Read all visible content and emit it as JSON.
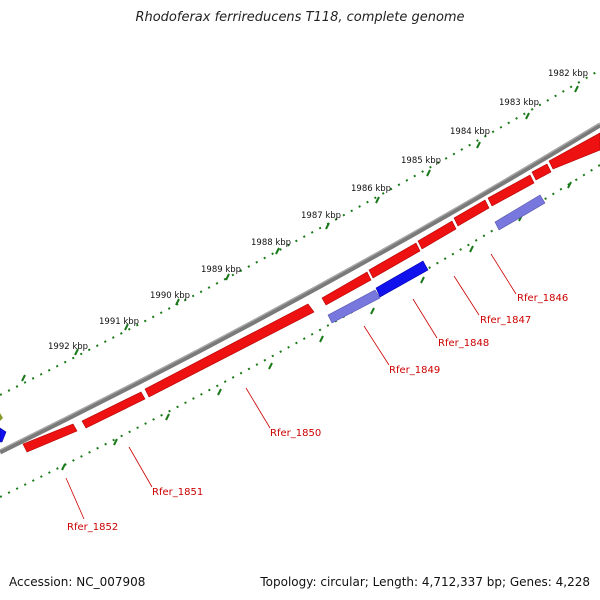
{
  "title": "Rhodoferax ferrireducens T118, complete genome",
  "footer": {
    "accession": "Accession: NC_007908",
    "summary": "Topology: circular; Length: 4,712,337 bp; Genes: 4,228"
  },
  "colors": {
    "backbone": "#7a7a7a",
    "ruler_ticks": "#1a7a1a",
    "forward_gene": "#ee1111",
    "reverse_gene": "#1111ee",
    "reverse_gene_light": "#7777dd",
    "label": "#cc0000"
  },
  "ruler": {
    "unit": "kbp",
    "labels": [
      "1982 kbp",
      "1983 kbp",
      "1984 kbp",
      "1985 kbp",
      "1986 kbp",
      "1987 kbp",
      "1988 kbp",
      "1989 kbp",
      "1990 kbp",
      "1991 kbp",
      "1992 kbp"
    ]
  },
  "genes": [
    {
      "label": "Rfer_1846"
    },
    {
      "label": "Rfer_1847"
    },
    {
      "label": "Rfer_1848"
    },
    {
      "label": "Rfer_1849"
    },
    {
      "label": "Rfer_1850"
    },
    {
      "label": "Rfer_1851"
    },
    {
      "label": "Rfer_1852"
    }
  ]
}
